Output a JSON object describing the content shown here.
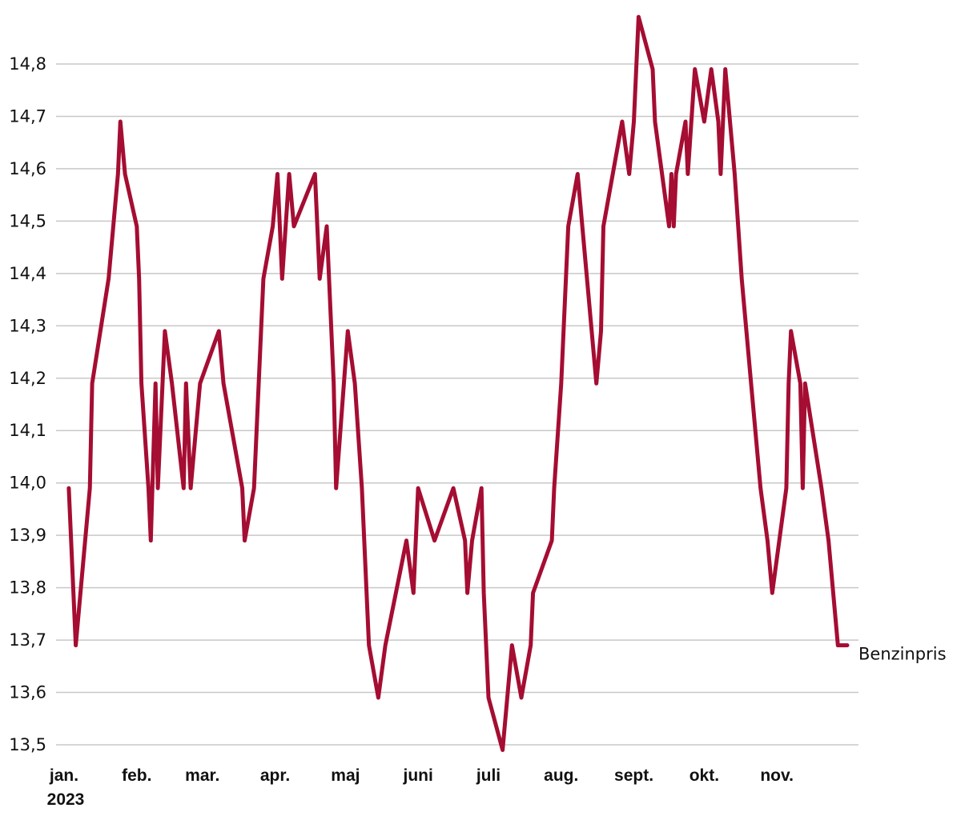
{
  "chart_data": {
    "type": "line",
    "title": "",
    "xlabel": "",
    "ylabel": "",
    "ylim": [
      13.5,
      14.8
    ],
    "yticks": [
      "14,8",
      "14,7",
      "14,6",
      "14,5",
      "14,4",
      "14,3",
      "14,2",
      "14,1",
      "14,0",
      "13,9",
      "13,8",
      "13,7",
      "13,6",
      "13,5"
    ],
    "ytick_values": [
      14.8,
      14.7,
      14.6,
      14.5,
      14.4,
      14.3,
      14.2,
      14.1,
      14.0,
      13.9,
      13.8,
      13.7,
      13.6,
      13.5
    ],
    "xlim": [
      "2023-01-01",
      "2023-12-01"
    ],
    "xticks": [
      {
        "date": "2023-01-01",
        "label": "jan.",
        "sublabel": "2023"
      },
      {
        "date": "2023-02-01",
        "label": "feb.",
        "sublabel": ""
      },
      {
        "date": "2023-03-01",
        "label": "mar.",
        "sublabel": ""
      },
      {
        "date": "2023-04-01",
        "label": "apr.",
        "sublabel": ""
      },
      {
        "date": "2023-05-01",
        "label": "maj",
        "sublabel": ""
      },
      {
        "date": "2023-06-01",
        "label": "juni",
        "sublabel": ""
      },
      {
        "date": "2023-07-01",
        "label": "juli",
        "sublabel": ""
      },
      {
        "date": "2023-08-01",
        "label": "aug.",
        "sublabel": ""
      },
      {
        "date": "2023-09-01",
        "label": "sept.",
        "sublabel": ""
      },
      {
        "date": "2023-10-01",
        "label": "okt.",
        "sublabel": ""
      },
      {
        "date": "2023-11-01",
        "label": "nov.",
        "sublabel": ""
      }
    ],
    "grid": true,
    "series": [
      {
        "name": "Benzinpris",
        "color": "#a50d32",
        "points": [
          [
            "2023-01-03",
            13.99
          ],
          [
            "2023-01-06",
            13.69
          ],
          [
            "2023-01-12",
            13.99
          ],
          [
            "2023-01-13",
            14.19
          ],
          [
            "2023-01-20",
            14.39
          ],
          [
            "2023-01-24",
            14.59
          ],
          [
            "2023-01-25",
            14.69
          ],
          [
            "2023-01-27",
            14.59
          ],
          [
            "2023-02-01",
            14.49
          ],
          [
            "2023-02-02",
            14.39
          ],
          [
            "2023-02-03",
            14.19
          ],
          [
            "2023-02-06",
            13.99
          ],
          [
            "2023-02-07",
            13.89
          ],
          [
            "2023-02-09",
            14.19
          ],
          [
            "2023-02-10",
            13.99
          ],
          [
            "2023-02-13",
            14.29
          ],
          [
            "2023-02-16",
            14.19
          ],
          [
            "2023-02-21",
            13.99
          ],
          [
            "2023-02-22",
            14.19
          ],
          [
            "2023-02-24",
            13.99
          ],
          [
            "2023-02-28",
            14.19
          ],
          [
            "2023-03-08",
            14.29
          ],
          [
            "2023-03-10",
            14.19
          ],
          [
            "2023-03-18",
            13.99
          ],
          [
            "2023-03-19",
            13.89
          ],
          [
            "2023-03-23",
            13.99
          ],
          [
            "2023-03-27",
            14.39
          ],
          [
            "2023-03-31",
            14.49
          ],
          [
            "2023-04-02",
            14.59
          ],
          [
            "2023-04-04",
            14.39
          ],
          [
            "2023-04-07",
            14.59
          ],
          [
            "2023-04-09",
            14.49
          ],
          [
            "2023-04-18",
            14.59
          ],
          [
            "2023-04-20",
            14.39
          ],
          [
            "2023-04-23",
            14.49
          ],
          [
            "2023-04-26",
            14.19
          ],
          [
            "2023-04-27",
            13.99
          ],
          [
            "2023-05-02",
            14.29
          ],
          [
            "2023-05-05",
            14.19
          ],
          [
            "2023-05-08",
            13.99
          ],
          [
            "2023-05-11",
            13.69
          ],
          [
            "2023-05-15",
            13.59
          ],
          [
            "2023-05-18",
            13.69
          ],
          [
            "2023-05-27",
            13.89
          ],
          [
            "2023-05-30",
            13.79
          ],
          [
            "2023-06-01",
            13.99
          ],
          [
            "2023-06-08",
            13.89
          ],
          [
            "2023-06-16",
            13.99
          ],
          [
            "2023-06-21",
            13.89
          ],
          [
            "2023-06-22",
            13.79
          ],
          [
            "2023-06-24",
            13.89
          ],
          [
            "2023-06-28",
            13.99
          ],
          [
            "2023-06-29",
            13.79
          ],
          [
            "2023-07-01",
            13.59
          ],
          [
            "2023-07-07",
            13.49
          ],
          [
            "2023-07-11",
            13.69
          ],
          [
            "2023-07-15",
            13.59
          ],
          [
            "2023-07-19",
            13.69
          ],
          [
            "2023-07-20",
            13.79
          ],
          [
            "2023-07-28",
            13.89
          ],
          [
            "2023-07-29",
            13.99
          ],
          [
            "2023-08-01",
            14.19
          ],
          [
            "2023-08-04",
            14.49
          ],
          [
            "2023-08-08",
            14.59
          ],
          [
            "2023-08-12",
            14.39
          ],
          [
            "2023-08-16",
            14.19
          ],
          [
            "2023-08-18",
            14.29
          ],
          [
            "2023-08-19",
            14.49
          ],
          [
            "2023-08-27",
            14.69
          ],
          [
            "2023-08-30",
            14.59
          ],
          [
            "2023-09-01",
            14.69
          ],
          [
            "2023-09-03",
            14.89
          ],
          [
            "2023-09-09",
            14.79
          ],
          [
            "2023-09-10",
            14.69
          ],
          [
            "2023-09-16",
            14.49
          ],
          [
            "2023-09-17",
            14.59
          ],
          [
            "2023-09-18",
            14.49
          ],
          [
            "2023-09-19",
            14.59
          ],
          [
            "2023-09-23",
            14.69
          ],
          [
            "2023-09-24",
            14.59
          ],
          [
            "2023-09-27",
            14.79
          ],
          [
            "2023-10-01",
            14.69
          ],
          [
            "2023-10-04",
            14.79
          ],
          [
            "2023-10-07",
            14.69
          ],
          [
            "2023-10-08",
            14.59
          ],
          [
            "2023-10-10",
            14.79
          ],
          [
            "2023-10-14",
            14.59
          ],
          [
            "2023-10-17",
            14.39
          ],
          [
            "2023-10-21",
            14.19
          ],
          [
            "2023-10-25",
            13.99
          ],
          [
            "2023-10-28",
            13.89
          ],
          [
            "2023-10-30",
            13.79
          ],
          [
            "2023-11-02",
            13.89
          ],
          [
            "2023-11-05",
            13.99
          ],
          [
            "2023-11-06",
            14.19
          ],
          [
            "2023-11-07",
            14.29
          ],
          [
            "2023-11-11",
            14.19
          ],
          [
            "2023-11-12",
            13.99
          ],
          [
            "2023-11-13",
            14.19
          ],
          [
            "2023-11-20",
            13.99
          ],
          [
            "2023-11-23",
            13.89
          ],
          [
            "2023-11-27",
            13.69
          ],
          [
            "2023-12-01",
            13.69
          ]
        ]
      }
    ]
  }
}
